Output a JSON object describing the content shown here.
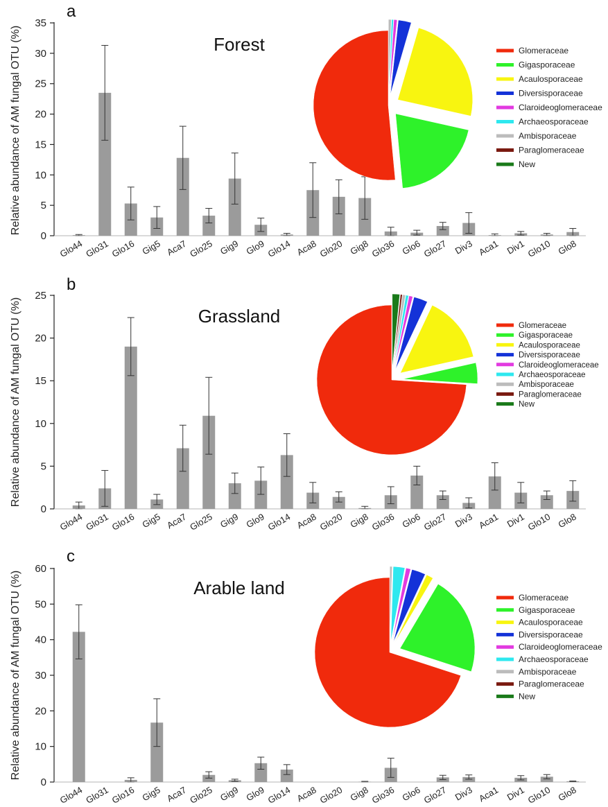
{
  "figure": {
    "ylabel": "Relative abundance of AM fungal OTU (%)"
  },
  "legend_entries": [
    {
      "name": "Glomeraceae",
      "color": "#f02a0c"
    },
    {
      "name": "Gigasporaceae",
      "color": "#2ef22a"
    },
    {
      "name": "Acaulosporaceae",
      "color": "#f8f510"
    },
    {
      "name": "Diversisporaceae",
      "color": "#1432d8"
    },
    {
      "name": "Claroideoglomeraceae",
      "color": "#e23ae0"
    },
    {
      "name": "Archaeosporaceae",
      "color": "#2ee8ef"
    },
    {
      "name": "Ambisporaceae",
      "color": "#bcbcbc"
    },
    {
      "name": "Paraglomeraceae",
      "color": "#7a1a10"
    },
    {
      "name": "New",
      "color": "#1a7a1a"
    }
  ],
  "bar_color": "#9b9b9b",
  "chart_data": [
    {
      "type": "bar",
      "panel_letter": "a",
      "title": "Forest",
      "ylabel": "Relative abundance of AM fungal OTU (%)",
      "ylim": [
        0,
        35
      ],
      "yticks": [
        0,
        5,
        10,
        15,
        20,
        25,
        30,
        35
      ],
      "categories": [
        "Glo44",
        "Glo31",
        "Glo16",
        "Gig5",
        "Aca7",
        "Glo25",
        "Gig9",
        "Glo9",
        "Glo14",
        "Aca8",
        "Glo20",
        "Gig8",
        "Glo36",
        "Glo6",
        "Glo27",
        "Div3",
        "Aca1",
        "Div1",
        "Glo10",
        "Glo8"
      ],
      "values": [
        0.1,
        23.5,
        5.3,
        3.0,
        12.8,
        3.3,
        9.4,
        1.8,
        0.2,
        7.5,
        6.4,
        6.2,
        0.7,
        0.5,
        1.6,
        2.1,
        0.1,
        0.4,
        0.2,
        0.6
      ],
      "errors": [
        0.1,
        7.8,
        2.7,
        1.8,
        5.2,
        1.2,
        4.2,
        1.1,
        0.2,
        4.5,
        2.8,
        3.5,
        0.7,
        0.4,
        0.6,
        1.7,
        0.2,
        0.3,
        0.2,
        0.6
      ],
      "pie": {
        "type": "pie",
        "labels": [
          "Glomeraceae",
          "Gigasporaceae",
          "Acaulosporaceae",
          "Diversisporaceae",
          "Claroideoglomeraceae",
          "Archaeosporaceae",
          "Ambisporaceae",
          "Paraglomeraceae",
          "New"
        ],
        "values": [
          51.5,
          20.0,
          24.0,
          2.8,
          0.7,
          0.4,
          0.6,
          0.0,
          0.0
        ]
      }
    },
    {
      "type": "bar",
      "panel_letter": "b",
      "title": "Grassland",
      "ylabel": "Relative abundance of AM fungal OTU (%)",
      "ylim": [
        0,
        25
      ],
      "yticks": [
        0,
        5,
        10,
        15,
        20,
        25
      ],
      "categories": [
        "Glo44",
        "Glo31",
        "Glo16",
        "Gig5",
        "Aca7",
        "Glo25",
        "Gig9",
        "Glo9",
        "Glo14",
        "Aca8",
        "Glo20",
        "Gig8",
        "Glo36",
        "Glo6",
        "Glo27",
        "Div3",
        "Aca1",
        "Div1",
        "Glo10",
        "Glo8"
      ],
      "values": [
        0.4,
        2.4,
        19.0,
        1.1,
        7.1,
        10.9,
        3.0,
        3.3,
        6.3,
        1.9,
        1.4,
        0.1,
        1.6,
        3.9,
        1.6,
        0.7,
        3.8,
        1.9,
        1.6,
        2.1
      ],
      "errors": [
        0.4,
        2.1,
        3.4,
        0.6,
        2.7,
        4.5,
        1.2,
        1.6,
        2.5,
        1.2,
        0.6,
        0.2,
        1.0,
        1.1,
        0.5,
        0.6,
        1.6,
        1.2,
        0.5,
        1.2
      ],
      "pie": {
        "type": "pie",
        "labels": [
          "Glomeraceae",
          "Gigasporaceae",
          "Acaulosporaceae",
          "Diversisporaceae",
          "Claroideoglomeraceae",
          "Archaeosporaceae",
          "Ambisporaceae",
          "Paraglomeraceae",
          "New"
        ],
        "values": [
          74.0,
          4.5,
          14.5,
          3.0,
          0.8,
          0.6,
          0.6,
          0.4,
          1.6
        ]
      }
    },
    {
      "type": "bar",
      "panel_letter": "c",
      "title": "Arable land",
      "ylabel": "Relative abundance of AM fungal OTU (%)",
      "ylim": [
        0,
        60
      ],
      "yticks": [
        0,
        10,
        20,
        30,
        40,
        50,
        60
      ],
      "categories": [
        "Glo44",
        "Glo31",
        "Glo16",
        "Gig5",
        "Aca7",
        "Glo25",
        "Gig9",
        "Glo9",
        "Glo14",
        "Aca8",
        "Glo20",
        "Gig8",
        "Glo36",
        "Glo6",
        "Glo27",
        "Div3",
        "Aca1",
        "Div1",
        "Glo10",
        "Glo8"
      ],
      "values": [
        42.2,
        0.0,
        0.6,
        16.7,
        0.0,
        2.0,
        0.5,
        5.3,
        3.5,
        0.0,
        0.0,
        0.1,
        4.0,
        0.0,
        1.3,
        1.4,
        0.0,
        1.2,
        1.5,
        0.2
      ],
      "errors": [
        7.6,
        0.0,
        0.6,
        6.7,
        0.0,
        0.9,
        0.3,
        1.7,
        1.4,
        0.0,
        0.0,
        0.1,
        2.7,
        0.0,
        0.6,
        0.6,
        0.0,
        0.6,
        0.6,
        0.1
      ],
      "pie": {
        "type": "pie",
        "labels": [
          "Glomeraceae",
          "Gigasporaceae",
          "Acaulosporaceae",
          "Diversisporaceae",
          "Claroideoglomeraceae",
          "Archaeosporaceae",
          "Ambisporaceae",
          "Paraglomeraceae",
          "New"
        ],
        "values": [
          70.0,
          21.5,
          1.5,
          3.0,
          1.0,
          2.5,
          0.5,
          0.0,
          0.0
        ]
      }
    }
  ]
}
